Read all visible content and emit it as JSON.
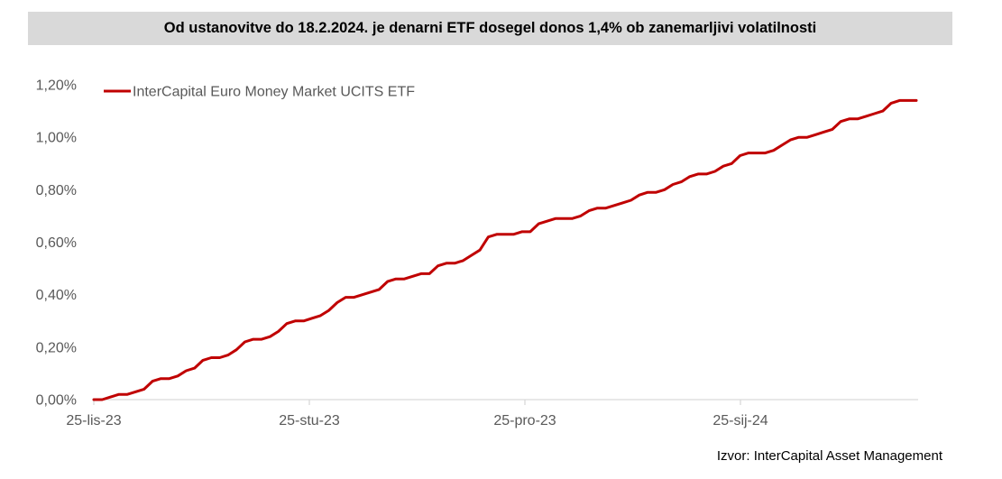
{
  "chart_data": {
    "type": "line",
    "title": "Od ustanovitve do 18.2.2024. je denarni ETF dosegel donos 1,4%  ob zanemarljivi volatilnosti",
    "xlabel": "",
    "ylabel": "",
    "ylim": [
      0,
      1.2
    ],
    "yticks": [
      "0,00%",
      "0,20%",
      "0,40%",
      "0,60%",
      "0,80%",
      "1,00%",
      "1,20%"
    ],
    "xticks": [
      "25-lis-23",
      "25-stu-23",
      "25-pro-23",
      "25-sij-24"
    ],
    "grid": false,
    "legend": "top-left",
    "series": [
      {
        "name": "InterCapital Euro Money Market UCITS ETF",
        "color": "#c00000",
        "start_date": "2023-08-25",
        "values": [
          0,
          0,
          0.01,
          0.02,
          0.02,
          0.03,
          0.04,
          0.07,
          0.08,
          0.08,
          0.09,
          0.11,
          0.12,
          0.15,
          0.16,
          0.16,
          0.17,
          0.19,
          0.22,
          0.23,
          0.23,
          0.24,
          0.26,
          0.29,
          0.3,
          0.3,
          0.31,
          0.32,
          0.34,
          0.37,
          0.39,
          0.39,
          0.4,
          0.41,
          0.42,
          0.45,
          0.46,
          0.46,
          0.47,
          0.48,
          0.48,
          0.51,
          0.52,
          0.52,
          0.53,
          0.55,
          0.57,
          0.62,
          0.63,
          0.63,
          0.63,
          0.64,
          0.64,
          0.67,
          0.68,
          0.69,
          0.69,
          0.69,
          0.7,
          0.72,
          0.73,
          0.73,
          0.74,
          0.75,
          0.76,
          0.78,
          0.79,
          0.79,
          0.8,
          0.82,
          0.83,
          0.85,
          0.86,
          0.86,
          0.87,
          0.89,
          0.9,
          0.93,
          0.94,
          0.94,
          0.94,
          0.95,
          0.97,
          0.99,
          1.0,
          1.0,
          1.01,
          1.02,
          1.03,
          1.06,
          1.07,
          1.07,
          1.08,
          1.09,
          1.1,
          1.13,
          1.14,
          1.14,
          1.14
        ]
      }
    ]
  },
  "source_text": "Izvor: InterCapital Asset Management"
}
